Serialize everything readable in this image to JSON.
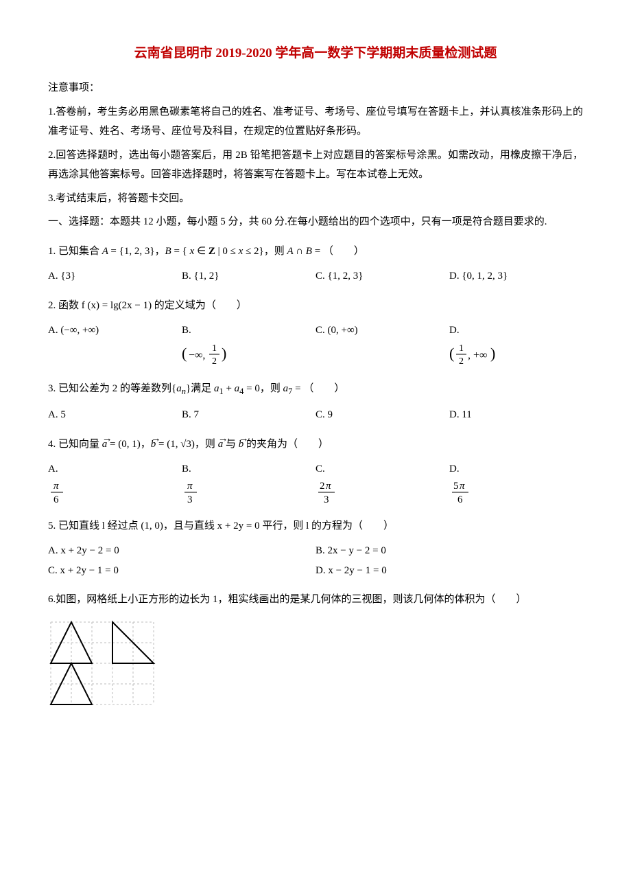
{
  "title": "云南省昆明市 2019-2020 学年高一数学下学期期末质量检测试题",
  "notice_header": "注意事项：",
  "notices": [
    "1.答卷前，考生务必用黑色碳素笔将自己的姓名、准考证号、考场号、座位号填写在答题卡上，并认真核准条形码上的准考证号、姓名、考场号、座位号及科目，在规定的位置贴好条形码。",
    "2.回答选择题时，选出每小题答案后，用 2B 铅笔把答题卡上对应题目的答案标号涂黑。如需改动，用橡皮擦干净后，再选涂其他答案标号。回答非选择题时，将答案写在答题卡上。写在本试卷上无效。",
    "3.考试结束后，将答题卡交回。"
  ],
  "section_intro": "一、选择题：本题共 12 小题，每小题 5 分，共 60 分.在每小题给出的四个选项中，只有一项是符合题目要求的.",
  "q1": {
    "stem_prefix": "1. 已知集合 ",
    "stem_mid": "，则 ",
    "stem_suffix": "（　　）",
    "A": "A. {3}",
    "B": "B. {1, 2}",
    "C": "C. {1, 2, 3}",
    "D": "D. {0, 1, 2, 3}"
  },
  "q2": {
    "stem": "2. 函数 f (x) = lg(2x − 1) 的定义域为（　　）",
    "A": "A. (−∞, +∞)",
    "C": "C. (0, +∞)"
  },
  "q3": {
    "stem_prefix": "3. 已知公差为 2 的等差数列",
    "stem_mid": "满足 ",
    "stem_suffix": "，则 ",
    "stem_end": "（　　）",
    "A": "A. 5",
    "B": "B. 7",
    "C": "C. 9",
    "D": "D. 11"
  },
  "q4": {
    "stem_prefix": "4. 已知向量 ",
    "stem_mid": "，则 ",
    "stem_suffix": " 的夹角为（　　）"
  },
  "q5": {
    "stem": "5. 已知直线 l 经过点 (1, 0)，且与直线 x + 2y = 0 平行，则 l 的方程为（　　）",
    "A": "A.  x + 2y − 2 = 0",
    "B": "B.  2x − y − 2 = 0",
    "C": "C.  x + 2y − 1 = 0",
    "D": "D.  x − 2y − 1 = 0"
  },
  "q6": {
    "stem": "6.如图，网格纸上小正方形的边长为 1，粗实线画出的是某几何体的三视图，则该几何体的体积为（　　）"
  },
  "figure": {
    "cell": 30,
    "cols": 5,
    "rows": 4,
    "grid_color": "#bdbdbd",
    "grid_dash": "3,3",
    "stroke_color": "#000000",
    "stroke_width": 2,
    "triangle1": [
      [
        0,
        2
      ],
      [
        1,
        0
      ],
      [
        2,
        2
      ]
    ],
    "triangle2": [
      [
        3,
        0
      ],
      [
        5,
        2
      ],
      [
        3,
        2
      ]
    ],
    "triangle3": [
      [
        0,
        4
      ],
      [
        1,
        2
      ],
      [
        2,
        4
      ]
    ]
  }
}
